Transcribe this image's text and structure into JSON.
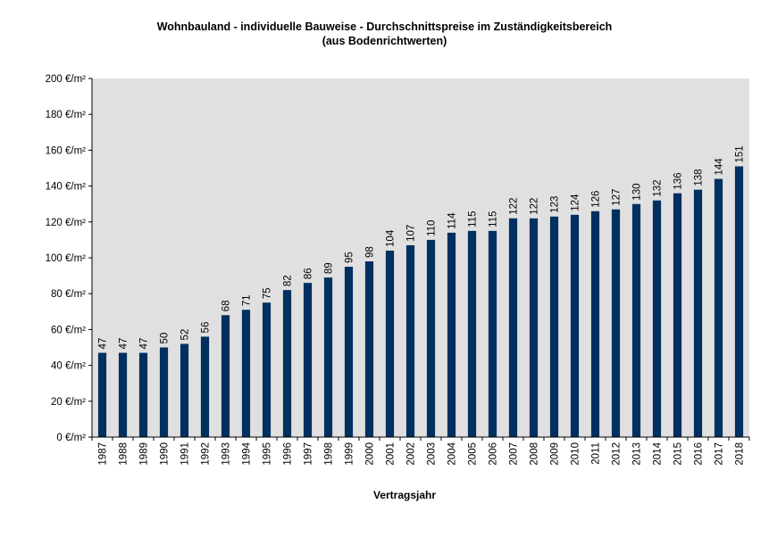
{
  "chart_data": {
    "type": "bar",
    "title": "Wohnbauland - individuelle Bauweise - Durchschnittspreise  im Zuständigkeitsbereich",
    "subtitle": "(aus Bodenrichtwerten)",
    "xlabel": "Vertragsjahr",
    "ylabel": "",
    "ylim": [
      0,
      200
    ],
    "y_ticks": [
      "0 €/m²",
      "20 €/m²",
      "40 €/m²",
      "60 €/m²",
      "80 €/m²",
      "100 €/m²",
      "120 €/m²",
      "140 €/m²",
      "160 €/m²",
      "180 €/m²",
      "200 €/m²"
    ],
    "y_tick_values": [
      0,
      20,
      40,
      60,
      80,
      100,
      120,
      140,
      160,
      180,
      200
    ],
    "categories": [
      "1987",
      "1988",
      "1989",
      "1990",
      "1991",
      "1992",
      "1993",
      "1994",
      "1995",
      "1996",
      "1997",
      "1998",
      "1999",
      "2000",
      "2001",
      "2002",
      "2003",
      "2004",
      "2005",
      "2006",
      "2007",
      "2008",
      "2009",
      "2010",
      "2011",
      "2012",
      "2013",
      "2014",
      "2015",
      "2016",
      "2017",
      "2018"
    ],
    "values": [
      47,
      47,
      47,
      50,
      52,
      56,
      68,
      71,
      75,
      82,
      86,
      89,
      95,
      98,
      104,
      107,
      110,
      114,
      115,
      115,
      122,
      122,
      123,
      124,
      126,
      127,
      130,
      132,
      136,
      138,
      144,
      151
    ],
    "bar_color": "#00305F",
    "plot_background": "#E0E0E0",
    "grid": false,
    "legend": "none"
  }
}
